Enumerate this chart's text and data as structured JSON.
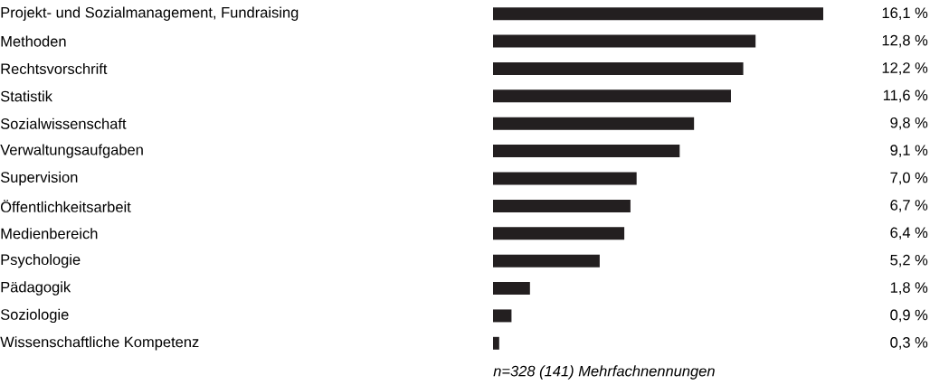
{
  "chart_data": {
    "type": "bar",
    "orientation": "horizontal",
    "categories": [
      "Projekt- und Sozialmanagement, Fundraising",
      "Methoden",
      "Rechtsvorschrift",
      "Statistik",
      "Sozialwissenschaft",
      "Verwaltungsaufgaben",
      "Supervision",
      "Öffentlichkeitsarbeit",
      "Medienbereich",
      "Psychologie",
      "Pädagogik",
      "Soziologie",
      "Wissenschaftliche Kompetenz"
    ],
    "values": [
      16.1,
      12.8,
      12.2,
      11.6,
      9.8,
      9.1,
      7.0,
      6.7,
      6.4,
      5.2,
      1.8,
      0.9,
      0.3
    ],
    "value_labels": [
      "16,1 %",
      "12,8 %",
      "12,2 %",
      "11,6 %",
      "9,8 %",
      "9,1 %",
      "7,0 %",
      "6,7 %",
      "6,4 %",
      "5,2 %",
      "1,8 %",
      "0,9 %",
      "0,3 %"
    ],
    "color": "#231f20",
    "annotations": [
      "n=328 (141) Mehrfachnennungen"
    ]
  }
}
